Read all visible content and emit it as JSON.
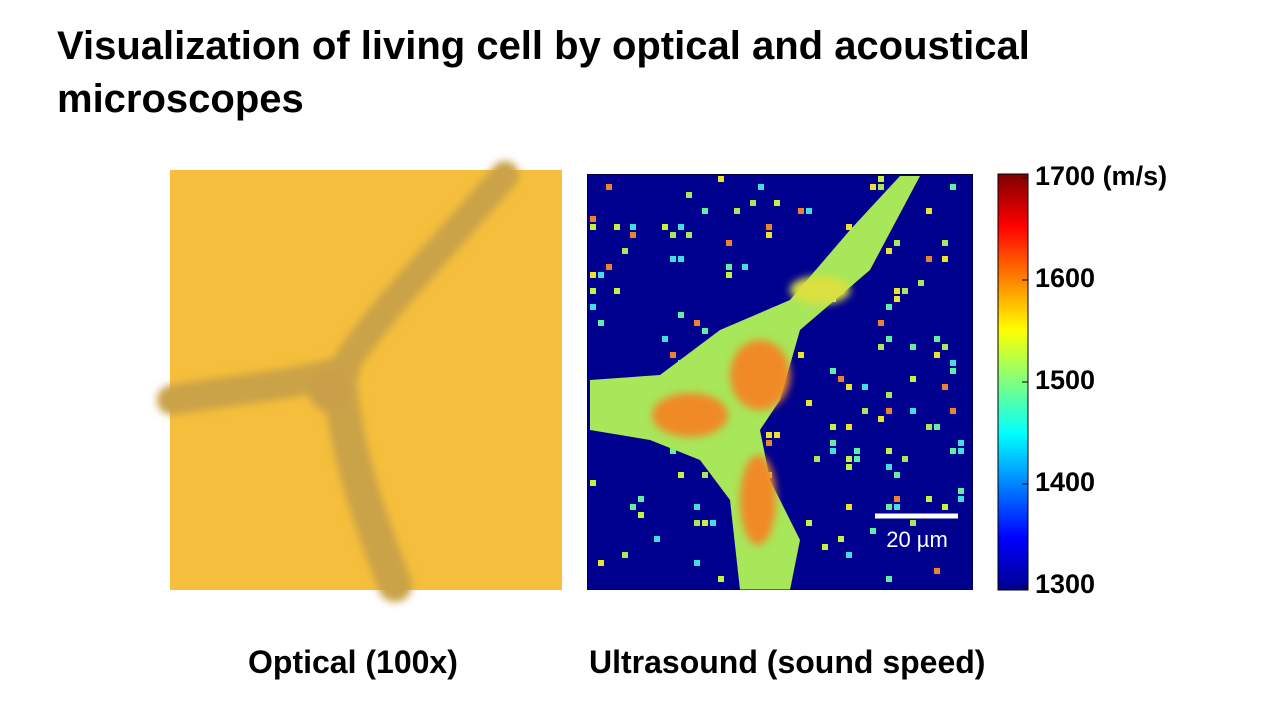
{
  "title": "Visualization of living cell by optical and acoustical microscopes",
  "optical": {
    "caption": "Optical (100x)"
  },
  "ultrasound": {
    "caption": "Ultrasound (sound speed)",
    "scale_bar": "20 µm"
  },
  "colorbar": {
    "ticks": [
      {
        "value": 1700,
        "label": "1700 (m/s)"
      },
      1600,
      1500,
      1400,
      1300
    ]
  }
}
